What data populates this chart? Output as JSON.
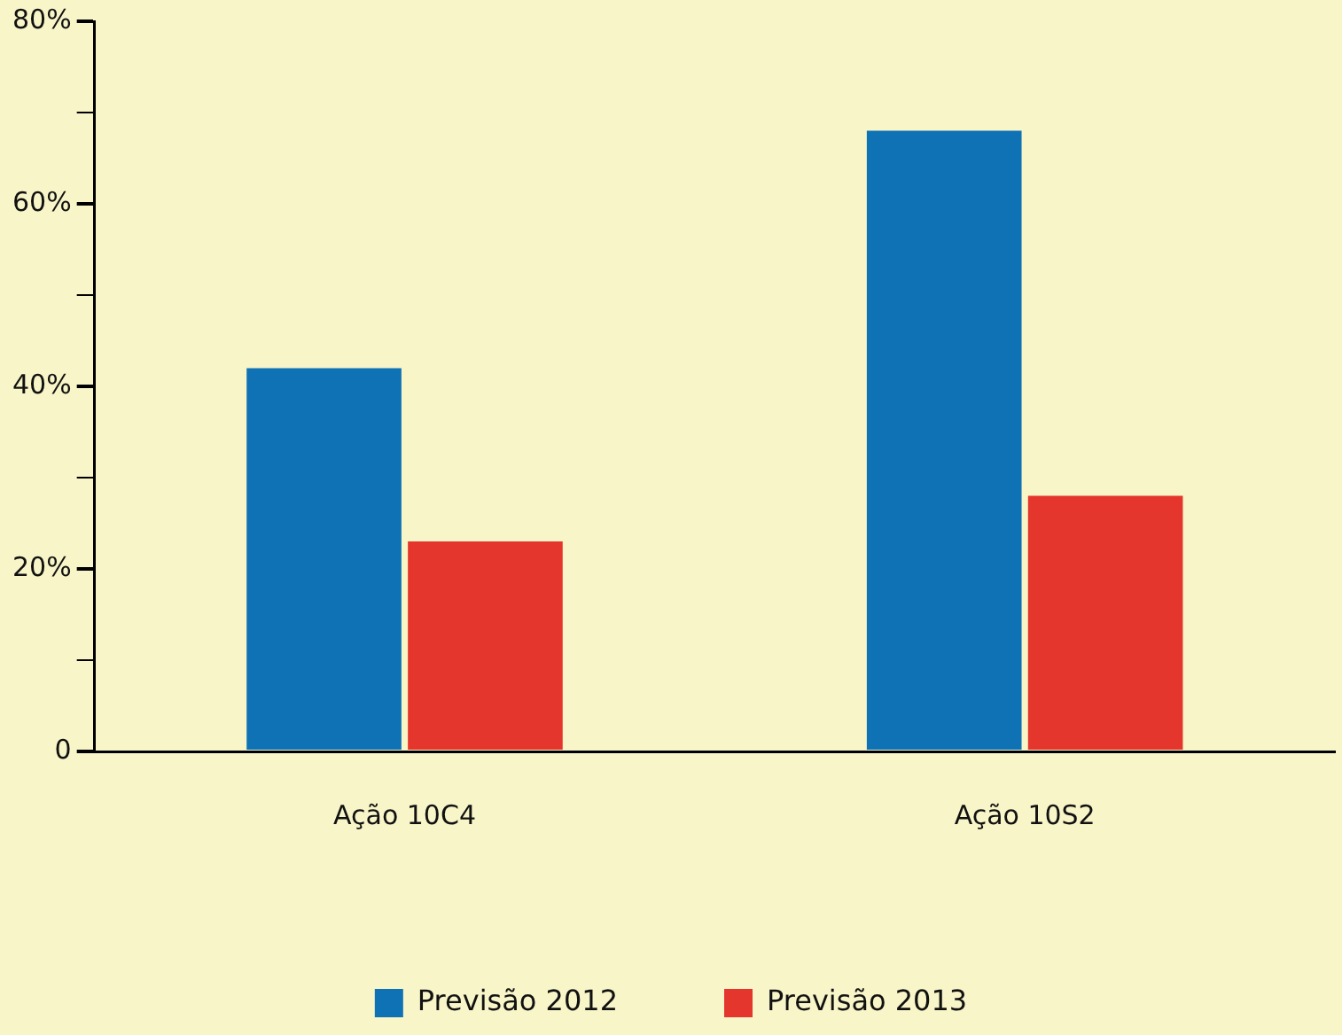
{
  "chart_data": {
    "type": "bar",
    "categories": [
      "Ação 10C4",
      "Ação 10S2"
    ],
    "series": [
      {
        "name": "Previsão 2012",
        "color": "#0e72b5",
        "values": [
          42,
          68
        ]
      },
      {
        "name": "Previsão 2013",
        "color": "#e5362d",
        "values": [
          23,
          28
        ]
      }
    ],
    "ylim": [
      0,
      80
    ],
    "yticks": [
      0,
      {
        "value": 10,
        "label": null
      },
      {
        "value": 20,
        "label": "20%"
      },
      {
        "value": 30,
        "label": null
      },
      {
        "value": 40,
        "label": "40%"
      },
      {
        "value": 50,
        "label": null
      },
      {
        "value": 60,
        "label": "60%"
      },
      {
        "value": 70,
        "label": null
      },
      {
        "value": 80,
        "label": "80%"
      }
    ],
    "grid": false,
    "legend": "bottom"
  }
}
